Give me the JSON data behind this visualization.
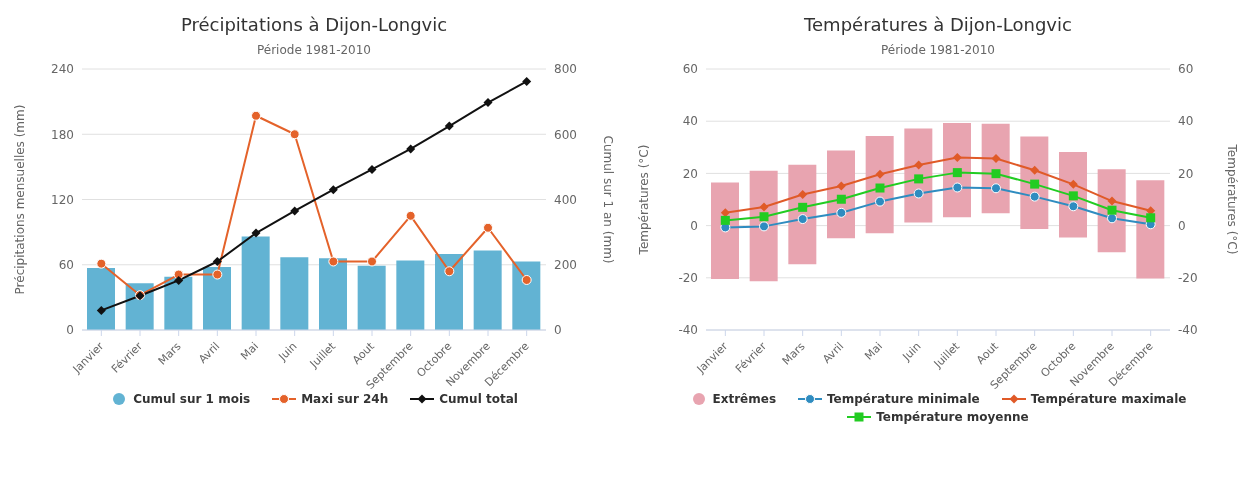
{
  "chart_data": [
    {
      "type": "bar",
      "title": "Précipitations à Dijon-Longvic",
      "subtitle": "Période 1981-2010",
      "ylabel": "Précipitations mensuelles (mm)",
      "y2label": "Cumul sur 1 an (mm)",
      "categories": [
        "Janvier",
        "Février",
        "Mars",
        "Avril",
        "Mai",
        "Juin",
        "Juillet",
        "Aout",
        "Septembre",
        "Octobre",
        "Novembre",
        "Décembre"
      ],
      "series": [
        {
          "name": "Cumul sur 1 mois",
          "color": "#62b3d3",
          "values": [
            57,
            43,
            49,
            58,
            86,
            67,
            66,
            59,
            64,
            70,
            73,
            63
          ]
        },
        {
          "name": "Maxi sur 24h",
          "type": "line",
          "color": "#e4622a",
          "marker": "circle",
          "values": [
            61,
            32,
            51,
            51,
            197,
            180,
            63,
            63,
            105,
            54,
            94,
            46
          ]
        },
        {
          "name": "Cumul total",
          "type": "line",
          "axis": "y2",
          "color": "#111111",
          "marker": "diamond",
          "values": [
            60,
            105,
            152,
            210,
            297,
            365,
            430,
            492,
            555,
            625,
            697,
            762
          ]
        }
      ],
      "ylim": [
        0,
        240
      ],
      "yticks": [
        0,
        60,
        120,
        180,
        240
      ],
      "y2lim": [
        0,
        800
      ],
      "y2ticks": [
        0,
        200,
        400,
        600,
        800
      ],
      "grid": "y",
      "legend": "bottom"
    },
    {
      "type": "bar",
      "title": "Températures à Dijon-Longvic",
      "subtitle": "Période 1981-2010",
      "ylabel": "Températures (°C)",
      "y2label": "Températures (°C)",
      "categories": [
        "Janvier",
        "Février",
        "Mars",
        "Avril",
        "Mai",
        "Juin",
        "Juillet",
        "Aout",
        "Septembre",
        "Octobre",
        "Novembre",
        "Décembre"
      ],
      "series": [
        {
          "name": "Extrêmes",
          "color": "#e8a4b0",
          "base": [
            -20.5,
            -21.3,
            -14.8,
            -4.8,
            -2.9,
            1.2,
            3.2,
            4.7,
            -1.3,
            -4.6,
            -10.2,
            -20.3
          ],
          "values": [
            37,
            42.3,
            38.1,
            33.6,
            37.2,
            36,
            36.1,
            34.3,
            35.4,
            32.8,
            31.8,
            37.7
          ]
        },
        {
          "name": "Température minimale",
          "type": "line",
          "color": "#2f8cc0",
          "marker": "circle",
          "values": [
            -0.7,
            -0.3,
            2.5,
            4.9,
            9.2,
            12.3,
            14.6,
            14.3,
            11.1,
            7.4,
            2.8,
            0.5
          ]
        },
        {
          "name": "Température maximale",
          "type": "line",
          "color": "#e05a28",
          "marker": "diamond",
          "values": [
            4.9,
            7.1,
            11.9,
            15.2,
            19.7,
            23.2,
            26.1,
            25.7,
            21.2,
            15.8,
            9.4,
            5.7
          ]
        },
        {
          "name": "Température moyenne",
          "type": "line",
          "color": "#22cc22",
          "marker": "square",
          "values": [
            2.0,
            3.4,
            7.0,
            10.1,
            14.4,
            17.9,
            20.3,
            19.9,
            15.9,
            11.4,
            5.9,
            3.0
          ]
        }
      ],
      "ylim": [
        -40,
        60
      ],
      "yticks": [
        -40,
        -20,
        0,
        20,
        40,
        60
      ],
      "y2lim": [
        -40,
        60
      ],
      "y2ticks": [
        -40,
        -20,
        0,
        20,
        40,
        60
      ],
      "grid": "y",
      "legend": "bottom"
    }
  ]
}
